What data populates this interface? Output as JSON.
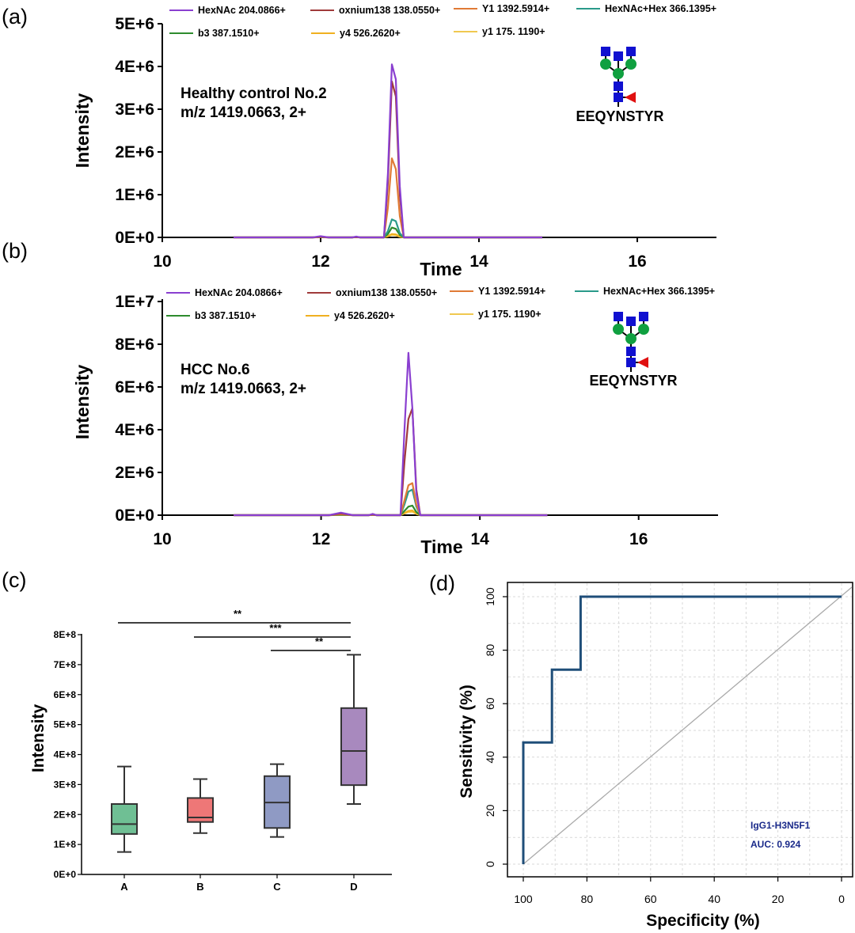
{
  "colors": {
    "hexnac": "#8a3fd0",
    "oxonium": "#a03a3a",
    "y1": "#e07a35",
    "hexnac_hex": "#2a9a8a",
    "b3": "#2e8b2e",
    "y4": "#f0b020",
    "yone": "#f0c850",
    "glycan_square": "#1010d0",
    "glycan_circle": "#10a040",
    "glycan_triangle": "#e01010",
    "roc_line": "#1f4e79",
    "diagonal": "#aaaaaa",
    "box_A": "#6fbf94",
    "box_B": "#ee7777",
    "box_C": "#8f9ac4",
    "box_D": "#a889be"
  },
  "chart_data": [
    {
      "panel": "(a)",
      "type": "line",
      "xlabel": "Time",
      "ylabel": "Intensity",
      "xlim": [
        10,
        17
      ],
      "ylim": [
        0,
        5000000
      ],
      "xticks": [
        "10",
        "12",
        "14",
        "16"
      ],
      "yticks": [
        "0E+0",
        "1E+6",
        "2E+6",
        "3E+6",
        "4E+6",
        "5E+6"
      ],
      "annotation": [
        "Healthy control No.2",
        "m/z 1419.0663,  2+"
      ],
      "peptide": "EEQYNSTYR",
      "x": [
        10.9,
        11.9,
        12.0,
        12.1,
        12.4,
        12.45,
        12.5,
        12.8,
        12.85,
        12.9,
        12.95,
        13.0,
        13.05,
        14.8
      ],
      "series": [
        {
          "name": "HexNAc  204.0866+",
          "color_key": "hexnac",
          "values": [
            0,
            0,
            30000,
            0,
            0,
            20000,
            0,
            0,
            1500000,
            4050000,
            3700000,
            1200000,
            0,
            0
          ]
        },
        {
          "name": "oxnium138 138.0550+",
          "color_key": "oxonium",
          "values": [
            0,
            0,
            15000,
            0,
            0,
            10000,
            0,
            0,
            1300000,
            3650000,
            3300000,
            1000000,
            0,
            0
          ]
        },
        {
          "name": "Y1 1392.5914+",
          "color_key": "y1",
          "values": [
            0,
            0,
            10000,
            0,
            0,
            10000,
            0,
            0,
            700000,
            1850000,
            1600000,
            500000,
            0,
            0
          ]
        },
        {
          "name": "HexNAc+Hex  366.1395+",
          "color_key": "hexnac_hex",
          "values": [
            0,
            0,
            5000,
            0,
            0,
            5000,
            0,
            0,
            150000,
            420000,
            380000,
            100000,
            0,
            0
          ]
        },
        {
          "name": "b3 387.1510+",
          "color_key": "b3",
          "values": [
            0,
            0,
            5000,
            0,
            0,
            5000,
            0,
            0,
            80000,
            230000,
            200000,
            60000,
            0,
            0
          ]
        },
        {
          "name": "y4 526.2620+",
          "color_key": "y4",
          "values": [
            0,
            0,
            3000,
            0,
            0,
            3000,
            0,
            0,
            30000,
            80000,
            70000,
            20000,
            0,
            0
          ]
        },
        {
          "name": "y1 175. 1190+",
          "color_key": "yone",
          "values": [
            0,
            0,
            3000,
            0,
            0,
            3000,
            0,
            0,
            25000,
            60000,
            50000,
            15000,
            0,
            0
          ]
        }
      ]
    },
    {
      "panel": "(b)",
      "type": "line",
      "xlabel": "Time",
      "ylabel": "Intensity",
      "xlim": [
        10,
        17
      ],
      "ylim": [
        0,
        10000000
      ],
      "xticks": [
        "10",
        "12",
        "14",
        "16"
      ],
      "yticks": [
        "0E+0",
        "2E+6",
        "4E+6",
        "6E+6",
        "8E+6",
        "1E+7"
      ],
      "annotation": [
        "HCC No.6",
        "m/z 1419.0663,  2+"
      ],
      "peptide": "EEQYNSTYR",
      "x": [
        10.9,
        12.1,
        12.25,
        12.4,
        12.6,
        12.65,
        12.7,
        13.0,
        13.05,
        13.1,
        13.15,
        13.2,
        13.25,
        14.85
      ],
      "series": [
        {
          "name": "HexNAc  204.0866+",
          "color_key": "hexnac",
          "values": [
            0,
            0,
            120000,
            0,
            0,
            60000,
            0,
            0,
            4000000,
            7600000,
            5000000,
            1000000,
            0,
            0
          ]
        },
        {
          "name": "oxnium138 138.0550+",
          "color_key": "oxonium",
          "values": [
            0,
            0,
            80000,
            0,
            0,
            40000,
            0,
            0,
            2500000,
            4500000,
            5000000,
            1200000,
            0,
            0
          ]
        },
        {
          "name": "Y1 1392.5914+",
          "color_key": "y1",
          "values": [
            0,
            0,
            40000,
            0,
            0,
            20000,
            0,
            0,
            700000,
            1400000,
            1500000,
            500000,
            0,
            0
          ]
        },
        {
          "name": "HexNAc+Hex  366.1395+",
          "color_key": "hexnac_hex",
          "values": [
            0,
            0,
            30000,
            0,
            0,
            20000,
            0,
            0,
            500000,
            1100000,
            1200000,
            400000,
            0,
            0
          ]
        },
        {
          "name": "b3 387.1510+",
          "color_key": "b3",
          "values": [
            0,
            0,
            20000,
            0,
            0,
            10000,
            0,
            0,
            200000,
            400000,
            450000,
            150000,
            0,
            0
          ]
        },
        {
          "name": "y4 526.2620+",
          "color_key": "y4",
          "values": [
            0,
            0,
            10000,
            0,
            0,
            10000,
            0,
            0,
            100000,
            200000,
            220000,
            80000,
            0,
            0
          ]
        },
        {
          "name": "y1 175. 1190+",
          "color_key": "yone",
          "values": [
            0,
            0,
            10000,
            0,
            0,
            10000,
            0,
            0,
            80000,
            150000,
            160000,
            60000,
            0,
            0
          ]
        }
      ]
    },
    {
      "panel": "(c)",
      "type": "box",
      "ylabel": "Intensity",
      "ylim": [
        0,
        800000000
      ],
      "yticks": [
        "0E+0",
        "1E+8",
        "2E+8",
        "3E+8",
        "4E+8",
        "5E+8",
        "6E+8",
        "7E+8",
        "8E+8"
      ],
      "categories": [
        "A",
        "B",
        "C",
        "D"
      ],
      "boxes": [
        {
          "group": "A",
          "min": 75000000,
          "q1": 135000000,
          "median": 168000000,
          "q3": 235000000,
          "max": 360000000,
          "color_key": "box_A"
        },
        {
          "group": "B",
          "min": 138000000,
          "q1": 175000000,
          "median": 190000000,
          "q3": 255000000,
          "max": 318000000,
          "color_key": "box_B"
        },
        {
          "group": "C",
          "min": 125000000,
          "q1": 155000000,
          "median": 240000000,
          "q3": 328000000,
          "max": 368000000,
          "color_key": "box_C"
        },
        {
          "group": "D",
          "min": 235000000,
          "q1": 298000000,
          "median": 412000000,
          "q3": 555000000,
          "max": 733000000,
          "color_key": "box_D"
        }
      ],
      "significance": [
        {
          "from": "A",
          "to": "D",
          "label": "**"
        },
        {
          "from": "B",
          "to": "D",
          "label": "***"
        },
        {
          "from": "C",
          "to": "D",
          "label": "**"
        }
      ]
    },
    {
      "panel": "(d)",
      "type": "line",
      "xlabel": "Specificity (%)",
      "ylabel": "Sensitivity (%)",
      "xlim": [
        100,
        0
      ],
      "ylim": [
        0,
        100
      ],
      "xticks": [
        "100",
        "80",
        "60",
        "40",
        "20",
        "0"
      ],
      "yticks": [
        "0",
        "20",
        "40",
        "60",
        "80",
        "100"
      ],
      "roc_specificity": [
        100,
        100,
        91,
        91,
        82,
        82,
        0
      ],
      "roc_sensitivity": [
        0,
        45.5,
        45.5,
        72.7,
        72.7,
        100,
        100
      ],
      "legend_name": "IgG1-H3N5F1",
      "auc_label": "AUC: 0.924"
    }
  ]
}
